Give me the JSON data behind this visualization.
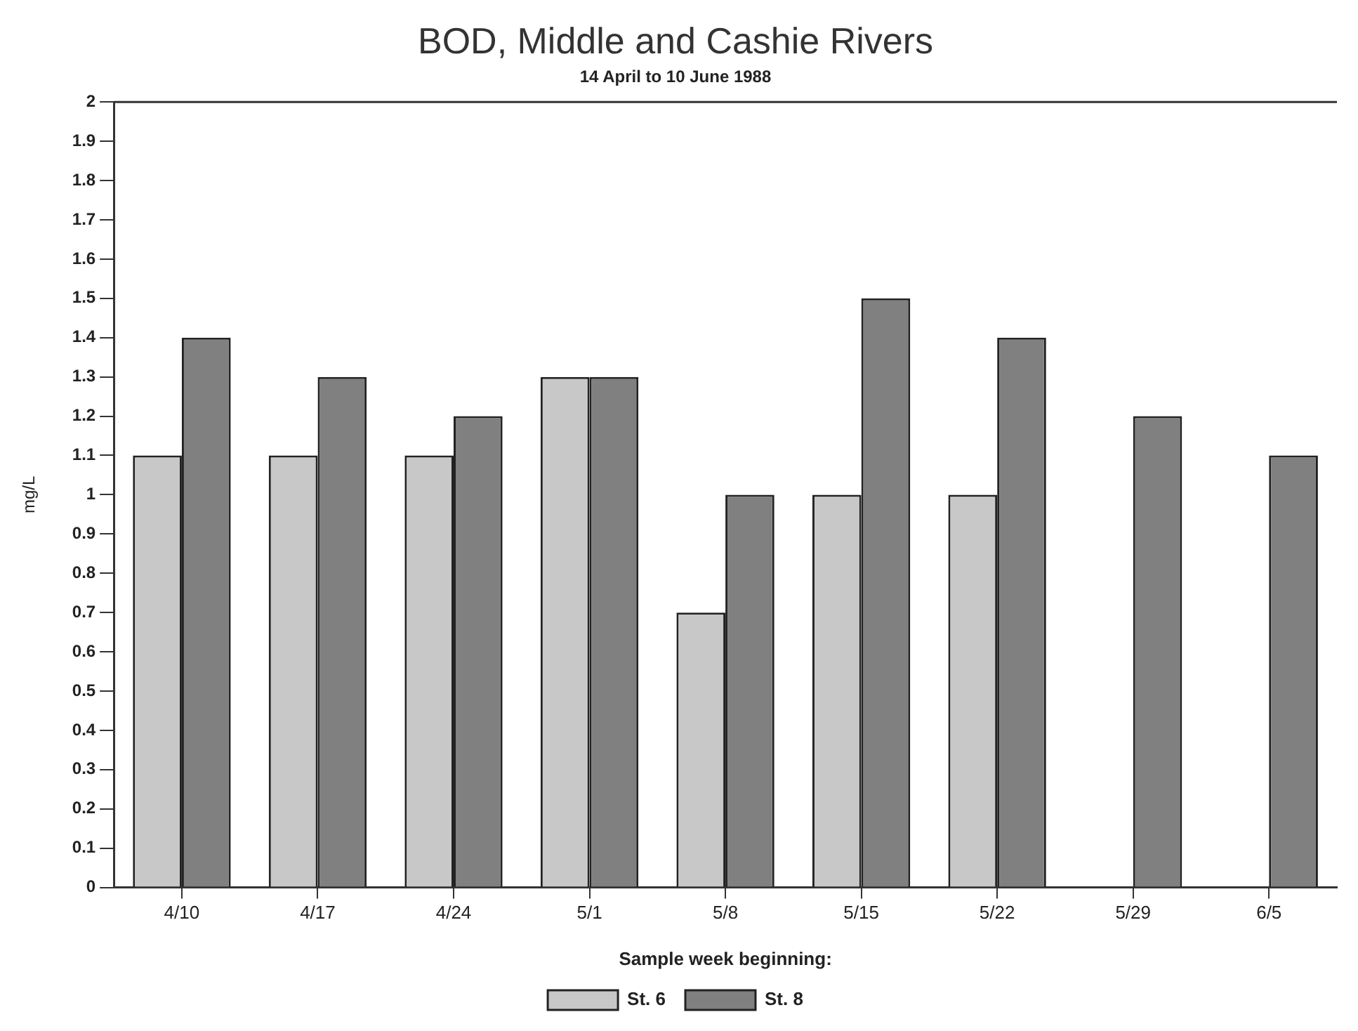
{
  "chart_data": {
    "type": "bar",
    "title": "BOD, Middle and Cashie Rivers",
    "subtitle": "14 April to 10 June 1988",
    "xlabel": "Sample week beginning:",
    "ylabel": "mg/L",
    "categories": [
      "4/10",
      "4/17",
      "4/24",
      "5/1",
      "5/8",
      "5/15",
      "5/22",
      "5/29",
      "6/5"
    ],
    "series": [
      {
        "name": "St. 6",
        "color": "#c8c8c8",
        "values": [
          1.1,
          1.1,
          1.1,
          1.3,
          0.7,
          1.0,
          1.0,
          null,
          null
        ]
      },
      {
        "name": "St. 8",
        "color": "#808080",
        "values": [
          1.4,
          1.3,
          1.2,
          1.3,
          1.0,
          1.5,
          1.4,
          1.2,
          1.1
        ]
      }
    ],
    "ylim": [
      0,
      2
    ],
    "yticks": [
      0,
      0.1,
      0.2,
      0.3,
      0.4,
      0.5,
      0.6,
      0.7,
      0.8,
      0.9,
      1,
      1.1,
      1.2,
      1.3,
      1.4,
      1.5,
      1.6,
      1.7,
      1.8,
      1.9,
      2
    ],
    "grid": false,
    "legend": "bottom"
  }
}
